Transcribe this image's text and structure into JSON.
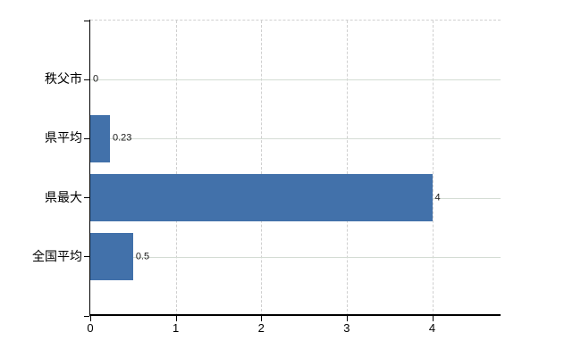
{
  "chart_data": {
    "type": "bar",
    "orientation": "horizontal",
    "title": "",
    "xlabel": "",
    "ylabel": "",
    "categories": [
      "秩父市",
      "県平均",
      "県最大",
      "全国平均"
    ],
    "values": [
      0,
      0.23,
      4,
      0.5
    ],
    "value_labels": [
      "0",
      "0.23",
      "4",
      "0.5"
    ],
    "xlim": [
      0,
      4.8
    ],
    "x_ticks": [
      0,
      1,
      2,
      3,
      4
    ],
    "x_tick_labels": [
      "0",
      "1",
      "2",
      "3",
      "4"
    ],
    "legend_position": "none",
    "grid": {
      "vertical_style": "dashed",
      "horizontal_style": "solid",
      "top_border_style": "dashed"
    },
    "colors": {
      "bar": "#4271aa",
      "axis": "#000000",
      "vertical_grid": "#d0d0d0",
      "horizontal_grid": "#d4dcd4",
      "value_label_text": "#1a1a1a",
      "category_label_text": "#000000",
      "background": "#ffffff"
    }
  }
}
